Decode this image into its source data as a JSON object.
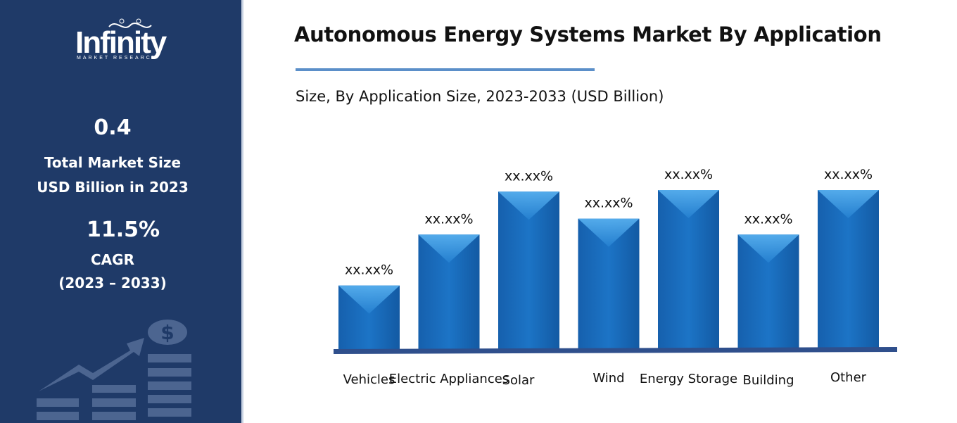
{
  "sidebar": {
    "logo_text": "Infinity",
    "logo_subtext": "MARKET RESEARCH",
    "market_size_value": "0.4",
    "market_size_label_1": "Total Market Size",
    "market_size_label_2": "USD Billion in 2023",
    "cagr_value": "11.5%",
    "cagr_label": "CAGR",
    "cagr_period": "(2023 – 2033)",
    "decoration_icon": "growth-chart-dollar-icon"
  },
  "chart_data": {
    "type": "bar",
    "title": "Autonomous Energy Systems Market By Application",
    "subtitle": "Size, By Application Size, 2023-2033 (USD Billion)",
    "categories": [
      "Vehicles",
      "Electric Appliances",
      "Solar",
      "Wind",
      "Energy Storage",
      "Building",
      "Other"
    ],
    "values": [
      40,
      72,
      99,
      82,
      100,
      72,
      100
    ],
    "data_labels": [
      "xx.xx%",
      "xx.xx%",
      "xx.xx%",
      "xx.xx%",
      "xx.xx%",
      "xx.xx%",
      "xx.xx%"
    ],
    "ylim": [
      0,
      100
    ],
    "grid": false,
    "bar_color": "#1a6fc1",
    "bar_highlight": "#4aa3ea",
    "baseline_color": "#2f4f8c"
  }
}
